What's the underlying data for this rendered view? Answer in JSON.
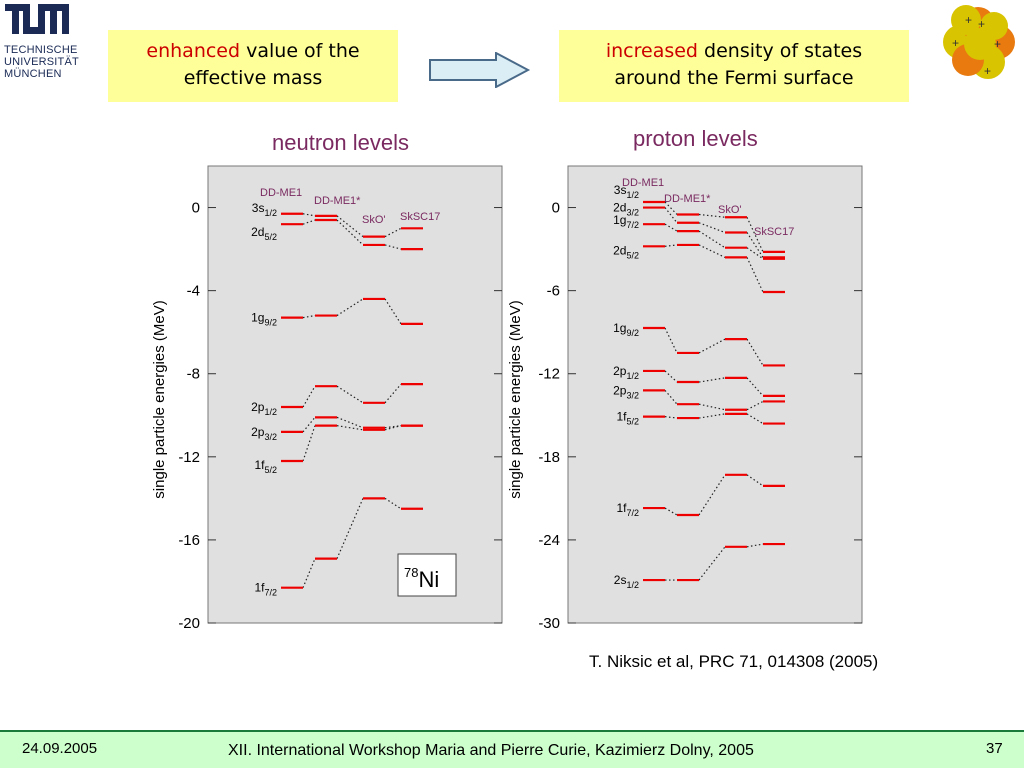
{
  "logo": {
    "title": "TUM",
    "lines": [
      "TECHNISCHE",
      "UNIVERSITÄT",
      "MÜNCHEN"
    ]
  },
  "box_left": {
    "accent": "enhanced",
    "rest": "value of the",
    "line2": "effective mass"
  },
  "box_right": {
    "accent": "increased",
    "rest": "density of states",
    "line2": "around the Fermi surface"
  },
  "colors": {
    "accent": "#cc0000",
    "box_bg": "#ffff99",
    "plot_bg": "#e0e0e0",
    "level": "#ee0000",
    "label": "#7a2a60",
    "footer_bg": "#ccffcc"
  },
  "reference": "T. Niksic et al,  PRC 71, 014308 (2005)",
  "footer": {
    "date": "24.09.2005",
    "text": "XII. International Workshop Maria and Pierre Curie, Kazimierz Dolny, 2005",
    "page": "37"
  },
  "chart_data": [
    {
      "type": "level-scheme",
      "title": "neutron levels",
      "ylabel": "single particle energies (MeV)",
      "ylim": [
        -20,
        2
      ],
      "yticks": [
        0,
        -4,
        -8,
        -12,
        -16,
        -20
      ],
      "columns": [
        "DD-ME1",
        "DD-ME1*",
        "SkO'",
        "SkSC17"
      ],
      "nucleus": {
        "mass": "78",
        "symbol": "Ni"
      },
      "states": [
        {
          "label": "3s",
          "sub": "1/2",
          "values": [
            -0.3,
            -0.4,
            -1.4,
            -1.0
          ]
        },
        {
          "label": "2d",
          "sub": "5/2",
          "values": [
            -0.8,
            -0.6,
            -1.8,
            -2.0
          ]
        },
        {
          "label": "1g",
          "sub": "9/2",
          "values": [
            -5.3,
            -5.2,
            -4.4,
            -5.6
          ]
        },
        {
          "label": "2p",
          "sub": "1/2",
          "values": [
            -9.6,
            -8.6,
            -9.4,
            -8.5
          ]
        },
        {
          "label": "2p",
          "sub": "3/2",
          "values": [
            -10.8,
            -10.1,
            -10.6,
            -10.5
          ]
        },
        {
          "label": "1f",
          "sub": "5/2",
          "values": [
            -12.2,
            -10.5,
            -10.7,
            -10.5
          ]
        },
        {
          "label": "1f",
          "sub": "7/2",
          "values": [
            -18.3,
            -16.9,
            -14.0,
            -14.5
          ]
        }
      ]
    },
    {
      "type": "level-scheme",
      "title": "proton levels",
      "ylabel": "single particle energies (MeV)",
      "ylim": [
        -30,
        3
      ],
      "yticks": [
        0,
        -6,
        -12,
        -18,
        -24,
        -30
      ],
      "columns": [
        "DD-ME1",
        "DD-ME1*",
        "SkO'",
        "SkSC17"
      ],
      "states": [
        {
          "label": "3s",
          "sub": "1/2",
          "values": [
            0.4,
            -0.5,
            -0.7,
            -3.2
          ]
        },
        {
          "label": "2d",
          "sub": "3/2",
          "values": [
            0.0,
            -1.1,
            -1.8,
            -3.6
          ]
        },
        {
          "label": "1g",
          "sub": "7/2",
          "values": [
            -1.2,
            -1.7,
            -2.9,
            -3.7
          ]
        },
        {
          "label": "2d",
          "sub": "5/2",
          "values": [
            -2.8,
            -2.7,
            -3.6,
            -6.1
          ]
        },
        {
          "label": "1g",
          "sub": "9/2",
          "values": [
            -8.7,
            -10.5,
            -9.5,
            -11.4
          ]
        },
        {
          "label": "2p",
          "sub": "1/2",
          "values": [
            -11.8,
            -12.6,
            -12.3,
            -13.6
          ]
        },
        {
          "label": "2p",
          "sub": "3/2",
          "values": [
            -13.2,
            -14.2,
            -14.6,
            -14.0
          ]
        },
        {
          "label": "1f",
          "sub": "5/2",
          "values": [
            -15.1,
            -15.2,
            -14.9,
            -15.6
          ]
        },
        {
          "label": "1f",
          "sub": "7/2",
          "values": [
            -21.7,
            -22.2,
            -19.3,
            -20.1
          ]
        },
        {
          "label": "2s",
          "sub": "1/2",
          "values": [
            -26.9,
            -26.9,
            -24.5,
            -24.3
          ]
        }
      ]
    }
  ]
}
